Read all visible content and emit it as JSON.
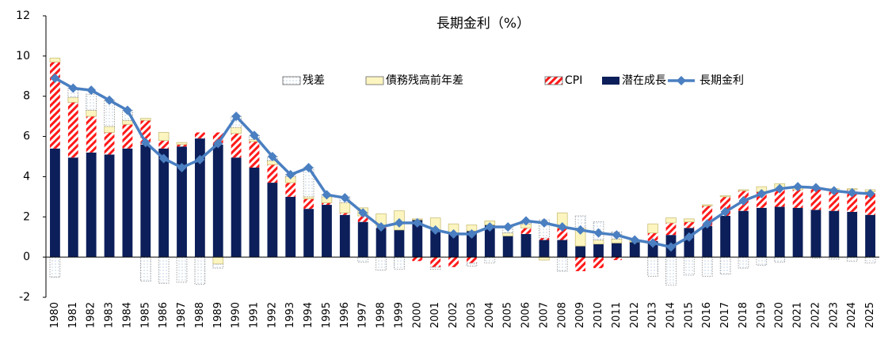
{
  "chart_data": {
    "type": "bar",
    "title": "長期金利（%）",
    "categories": [
      "1980",
      "1981",
      "1982",
      "1983",
      "1984",
      "1985",
      "1986",
      "1987",
      "1988",
      "1989",
      "1990",
      "1991",
      "1992",
      "1993",
      "1994",
      "1995",
      "1996",
      "1997",
      "1998",
      "1999",
      "2000",
      "2001",
      "2002",
      "2003",
      "2004",
      "2005",
      "2006",
      "2007",
      "2008",
      "2009",
      "2010",
      "2011",
      "2012",
      "2013",
      "2014",
      "2015",
      "2016",
      "2017",
      "2018",
      "2019",
      "2020",
      "2021",
      "2022",
      "2023",
      "2024",
      "2025"
    ],
    "series": [
      {
        "name": "残差",
        "color": "#9bb7d4",
        "fill": "dots",
        "values": [
          -1.0,
          0.45,
          0.8,
          1.3,
          0.5,
          -1.2,
          -1.3,
          -1.25,
          -1.35,
          -0.2,
          0.55,
          0.2,
          0.2,
          0.1,
          1.45,
          0.1,
          0.3,
          -0.25,
          -0.65,
          -0.6,
          0,
          -0.1,
          0,
          -0.15,
          -0.3,
          0.3,
          0.15,
          0.9,
          -0.7,
          0.6,
          0.9,
          0.35,
          0,
          -0.95,
          -1.4,
          -0.9,
          -0.95,
          -0.85,
          -0.55,
          -0.4,
          -0.25,
          0.05,
          -0.05,
          -0.1,
          -0.2,
          -0.3
        ]
      },
      {
        "name": "債務残高前年差",
        "color": "#fdf5c0",
        "fill": "solid",
        "values": [
          0.2,
          0.25,
          0.3,
          0.3,
          0.2,
          0.1,
          0.4,
          0.1,
          0,
          -0.35,
          0.3,
          0.1,
          0.2,
          0.3,
          0.1,
          0.3,
          0.5,
          0.4,
          0.6,
          0.95,
          0.05,
          0.6,
          0.45,
          0.3,
          0.2,
          0.15,
          0.2,
          -0.15,
          0.75,
          0.9,
          0.2,
          0.2,
          0.1,
          0.45,
          0.25,
          0.15,
          0.05,
          0.05,
          0.05,
          0.25,
          0.25,
          0.1,
          0.05,
          0.1,
          0.05,
          0.1
        ]
      },
      {
        "name": "CPI",
        "color": "#ff1a1a",
        "fill": "stripes",
        "values": [
          4.3,
          2.75,
          1.8,
          1.1,
          1.2,
          1.2,
          0.4,
          0.1,
          0.3,
          0.6,
          1.2,
          1.3,
          0.9,
          0.7,
          0.5,
          0.1,
          0.1,
          0.3,
          0.1,
          0,
          -0.2,
          -0.5,
          -0.5,
          -0.3,
          0,
          0,
          0.3,
          0.1,
          0.6,
          -0.7,
          -0.55,
          -0.15,
          0,
          0.4,
          0.6,
          0.3,
          1.0,
          0.95,
          1.0,
          0.8,
          0.9,
          0.9,
          1.05,
          1.0,
          1.1,
          1.15
        ]
      },
      {
        "name": "潜在成長",
        "color": "#0c1f5a",
        "fill": "solid",
        "values": [
          5.4,
          4.95,
          5.2,
          5.1,
          5.4,
          5.6,
          5.4,
          5.5,
          5.9,
          5.6,
          4.95,
          4.45,
          3.7,
          3.0,
          2.4,
          2.6,
          2.1,
          1.75,
          1.45,
          1.35,
          1.85,
          1.35,
          1.2,
          1.3,
          1.6,
          1.05,
          1.15,
          0.85,
          0.85,
          0.55,
          0.65,
          0.7,
          0.75,
          0.8,
          1.1,
          1.45,
          1.55,
          2.05,
          2.3,
          2.45,
          2.5,
          2.45,
          2.35,
          2.3,
          2.25,
          2.1
        ]
      },
      {
        "name": "長期金利",
        "color": "#4a7fc1",
        "type": "line",
        "values": [
          8.9,
          8.4,
          8.3,
          7.8,
          7.3,
          5.7,
          4.9,
          4.45,
          4.85,
          5.65,
          7.0,
          6.05,
          5.0,
          4.1,
          4.45,
          3.1,
          2.95,
          2.2,
          1.5,
          1.7,
          1.7,
          1.35,
          1.15,
          1.15,
          1.5,
          1.5,
          1.8,
          1.7,
          1.5,
          1.35,
          1.2,
          1.1,
          0.85,
          0.7,
          0.5,
          1.0,
          1.65,
          2.25,
          2.8,
          3.15,
          3.4,
          3.5,
          3.45,
          3.3,
          3.2,
          3.15
        ]
      }
    ],
    "ylim": [
      -2,
      12
    ],
    "yticks": [
      -2,
      0,
      2,
      4,
      6,
      8,
      10,
      12
    ],
    "grid": false
  }
}
